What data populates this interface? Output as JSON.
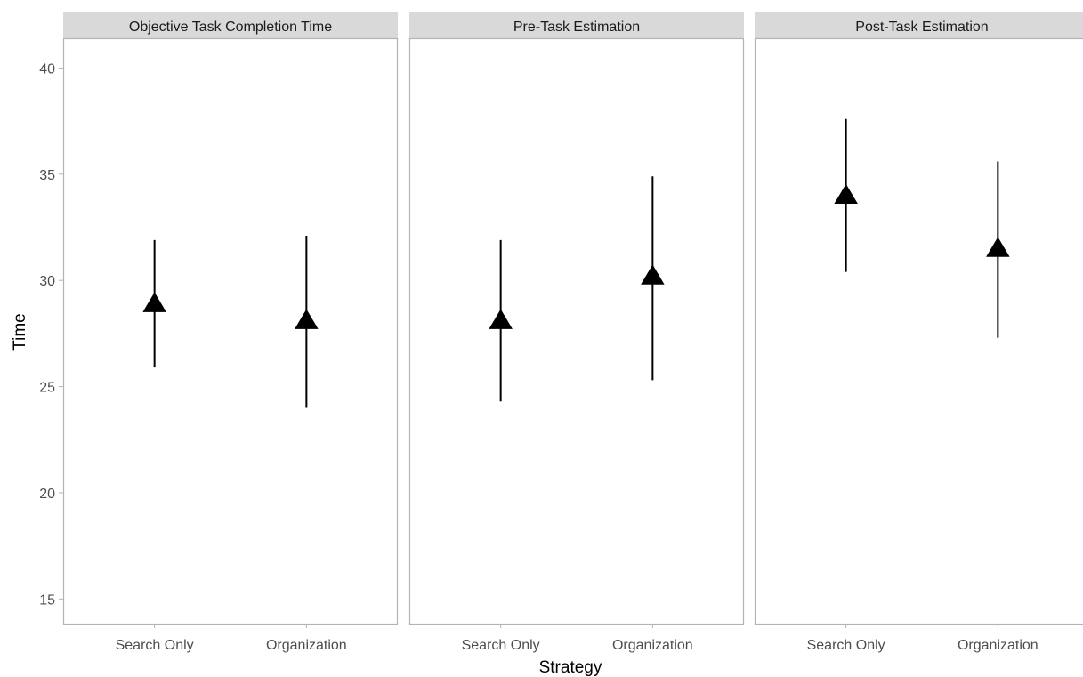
{
  "chart_data": {
    "type": "faceted-pointrange",
    "xlabel": "Strategy",
    "ylabel": "Time",
    "ylim": [
      13.8,
      41.4
    ],
    "yticks": [
      15,
      20,
      25,
      30,
      35,
      40
    ],
    "categories": [
      "Search Only",
      "Organization"
    ],
    "marker": "filled-triangle",
    "grid": false,
    "colors": {
      "mark": "#000000",
      "strip": "#d9d9d9",
      "panel_border": "#b3b3b3",
      "tick_text": "#4d4d4d"
    },
    "panels": [
      {
        "title": "Objective Task Completion Time",
        "points": [
          {
            "x": "Search Only",
            "y": 28.9,
            "ymin": 25.9,
            "ymax": 31.9
          },
          {
            "x": "Organization",
            "y": 28.1,
            "ymin": 24.0,
            "ymax": 32.1
          }
        ]
      },
      {
        "title": "Pre-Task Estimation",
        "points": [
          {
            "x": "Search Only",
            "y": 28.1,
            "ymin": 24.3,
            "ymax": 31.9
          },
          {
            "x": "Organization",
            "y": 30.2,
            "ymin": 25.3,
            "ymax": 34.9
          }
        ]
      },
      {
        "title": "Post-Task Estimation",
        "points": [
          {
            "x": "Search Only",
            "y": 34.0,
            "ymin": 30.4,
            "ymax": 37.6
          },
          {
            "x": "Organization",
            "y": 31.5,
            "ymin": 27.3,
            "ymax": 35.6
          }
        ]
      }
    ]
  }
}
